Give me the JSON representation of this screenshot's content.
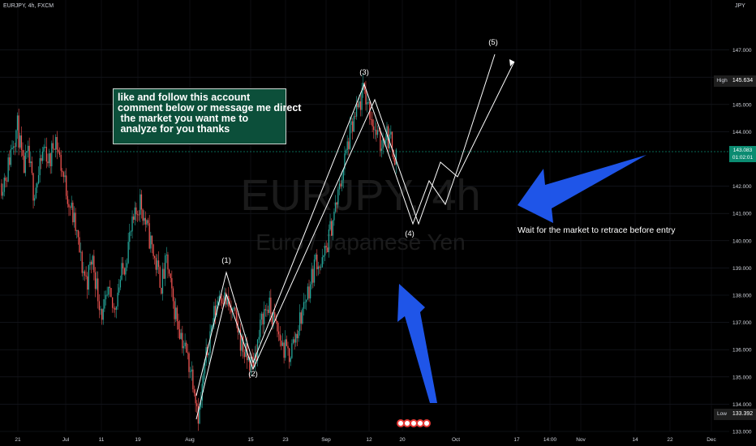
{
  "header": {
    "symbol_line": "EURJPY, 4h, FXCM",
    "currency": "JPY"
  },
  "watermark": {
    "ticker": "EURJPY, 4h",
    "name": "Euro / Japanese Yen"
  },
  "note": "like and follow this account\ncomment below or message me direct\n the market you want me to\n analyze for you thanks",
  "annotation_retrace": "Wait for the market to retrace before entry",
  "wave_labels": [
    "(1)",
    "(2)",
    "(3)",
    "(4)",
    "(5)"
  ],
  "price_axis": {
    "ticks": [
      "147.000",
      "146.000",
      "145.000",
      "144.000",
      "142.000",
      "141.000",
      "140.000",
      "139.000",
      "138.000",
      "137.000",
      "136.000",
      "135.000",
      "134.000",
      "133.000"
    ],
    "high_label": "High",
    "high_value": "145.634",
    "low_label": "Low",
    "low_value": "133.392",
    "current_price": "143.083",
    "countdown": "01:02:01"
  },
  "time_axis": {
    "ticks": [
      "21",
      "Jul",
      "11",
      "19",
      "Aug",
      "15",
      "23",
      "Sep",
      "12",
      "20",
      "Oct",
      "17",
      "14:00",
      "Nov",
      "14",
      "22",
      "Dec"
    ]
  },
  "chart_data": {
    "type": "candlestick",
    "symbol": "EURJPY",
    "interval": "4h",
    "source": "FXCM",
    "ylim": [
      133.0,
      147.4
    ],
    "high": 145.634,
    "low": 133.392,
    "last": 143.083,
    "path_close": [
      142.1,
      142.5,
      143.6,
      144.2,
      142.6,
      143.1,
      141.8,
      142.4,
      143.5,
      142.8,
      143.9,
      142.9,
      142.0,
      141.2,
      140.3,
      139.1,
      138.5,
      139.4,
      138.1,
      137.2,
      138.0,
      137.4,
      138.4,
      139.1,
      140.1,
      140.8,
      141.5,
      140.6,
      139.9,
      139.1,
      138.4,
      139.3,
      137.8,
      137.1,
      136.3,
      135.6,
      134.9,
      133.5,
      135.2,
      136.5,
      137.4,
      138.2,
      137.8,
      137.4,
      137.0,
      136.2,
      135.7,
      135.4,
      136.2,
      137.3,
      137.6,
      137.1,
      136.5,
      136.0,
      135.8,
      136.4,
      137.1,
      137.9,
      138.5,
      139.4,
      139.0,
      139.8,
      140.7,
      141.5,
      142.6,
      143.6,
      144.3,
      144.9,
      145.5,
      144.8,
      144.1,
      143.5,
      144.0,
      143.6,
      143.08
    ]
  }
}
